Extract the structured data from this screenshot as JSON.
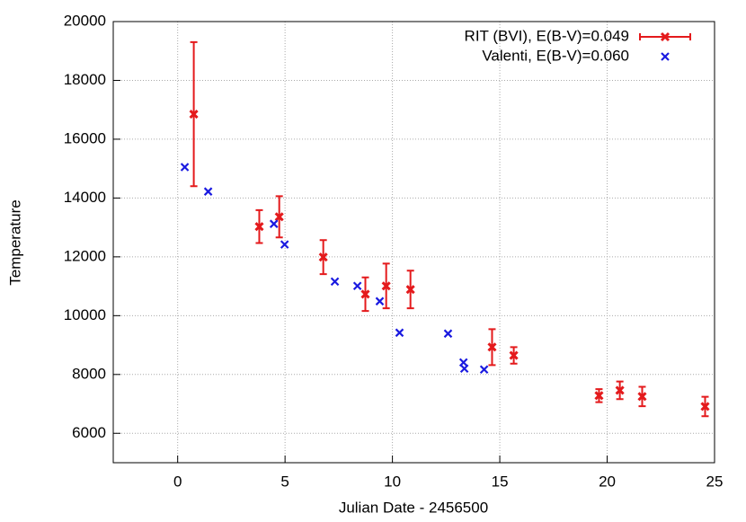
{
  "chart_data": {
    "type": "scatter",
    "xlabel": "Julian Date - 2456500",
    "ylabel": "Temperature",
    "xlim": [
      -3,
      25
    ],
    "ylim": [
      5000,
      20000
    ],
    "xticks": [
      0,
      5,
      10,
      15,
      20,
      25
    ],
    "yticks": [
      6000,
      8000,
      10000,
      12000,
      14000,
      16000,
      18000,
      20000
    ],
    "grid": true,
    "legend": "upper right",
    "series": [
      {
        "name": "RIT (BVI), E(B-V)=0.049",
        "color": "#e41a1c",
        "x": [
          0.75,
          3.8,
          4.73,
          6.78,
          8.74,
          9.71,
          10.84,
          14.64,
          15.65,
          19.62,
          20.59,
          21.63,
          24.56
        ],
        "values": [
          16850,
          13030,
          13360,
          11990,
          10730,
          11010,
          10890,
          8930,
          8650,
          7280,
          7460,
          7250,
          6910
        ],
        "errors": [
          2450,
          560,
          700,
          580,
          570,
          760,
          640,
          610,
          280,
          220,
          300,
          330,
          330
        ]
      },
      {
        "name": "Valenti, E(B-V)=0.060",
        "color": "#1a1ae0",
        "x": [
          0.33,
          1.42,
          4.48,
          4.98,
          7.32,
          8.37,
          9.41,
          10.33,
          12.59,
          13.31,
          13.35,
          14.27
        ],
        "values": [
          15050,
          14220,
          13120,
          12420,
          11160,
          11010,
          10490,
          9420,
          9390,
          8410,
          8200,
          8170
        ]
      }
    ]
  }
}
